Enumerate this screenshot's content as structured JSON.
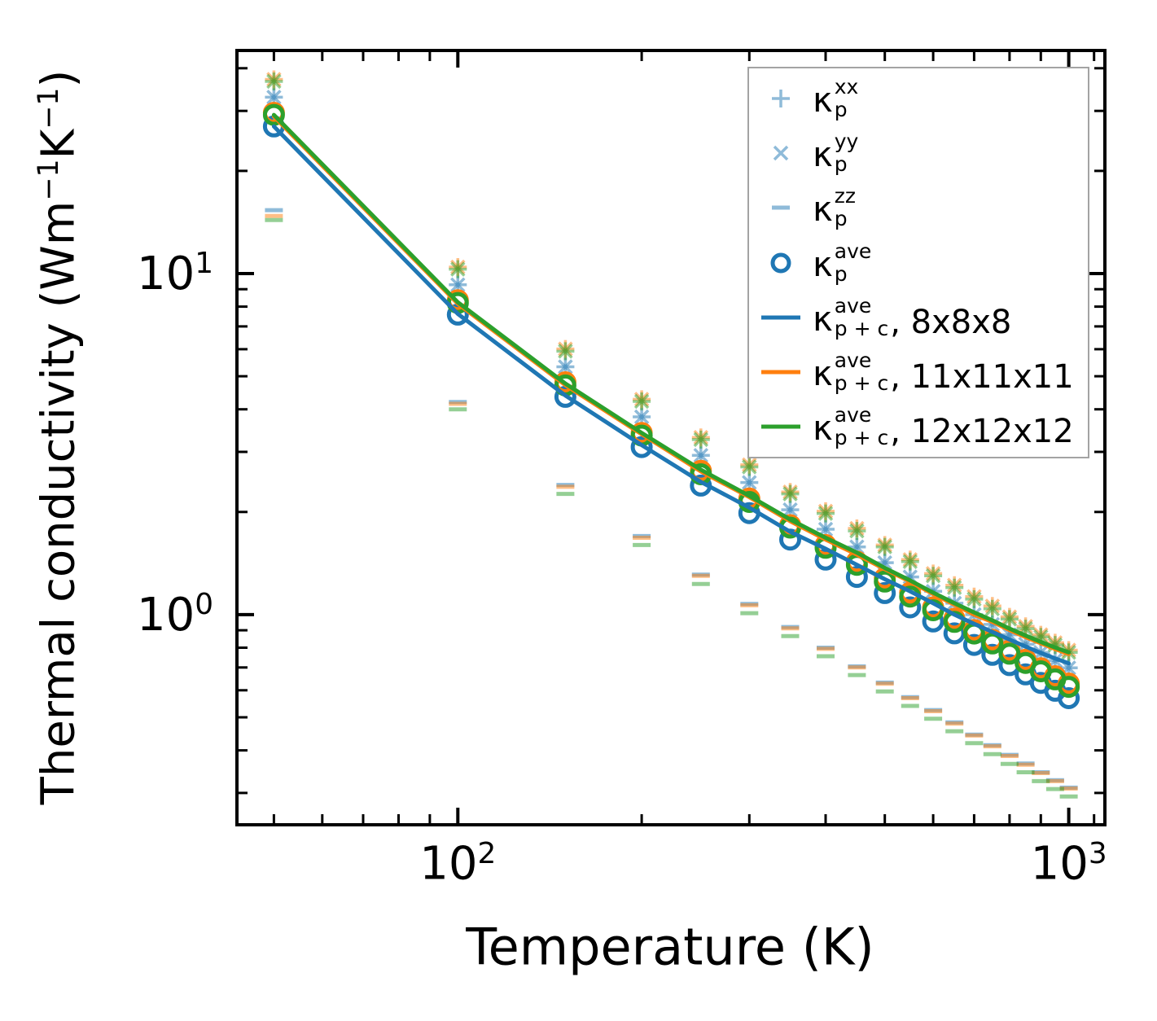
{
  "chart_data": {
    "type": "scatter+line",
    "title": "",
    "x_axis": {
      "label": "Temperature (K)",
      "scale": "log",
      "range": [
        43.5,
        1146
      ],
      "major_ticks": [
        100,
        1000
      ],
      "major_tick_labels": [
        {
          "t": "10",
          "sup": "2"
        },
        {
          "t": "10",
          "sup": "3"
        }
      ],
      "minor_ticks": [
        50,
        60,
        70,
        80,
        90,
        200,
        300,
        400,
        500,
        600,
        700,
        800,
        900,
        1100
      ]
    },
    "y_axis": {
      "label_parts": [
        {
          "t": "Thermal conductivity (Wm"
        },
        {
          "sup": "−1"
        },
        {
          "t": "K"
        },
        {
          "sup": "−1"
        },
        {
          "t": ")"
        }
      ],
      "scale": "log",
      "range": [
        0.242,
        45.1
      ],
      "major_ticks": [
        1,
        10
      ],
      "major_tick_labels": [
        {
          "t": "10",
          "sup": "0"
        },
        {
          "t": "10",
          "sup": "1"
        }
      ],
      "minor_ticks": [
        0.3,
        0.4,
        0.5,
        0.6,
        0.7,
        0.8,
        0.9,
        2,
        3,
        4,
        5,
        6,
        7,
        8,
        9,
        20,
        30,
        40
      ]
    },
    "temperatures": [
      50,
      100,
      150,
      200,
      250,
      300,
      350,
      400,
      450,
      500,
      550,
      600,
      650,
      700,
      750,
      800,
      850,
      900,
      950,
      1000
    ],
    "marker_light_opacity": 0.5,
    "meshes": [
      {
        "name": "8x8x8",
        "color": "#1f77b4",
        "xx": [
          32.9,
          9.27,
          5.33,
          3.8,
          2.93,
          2.44,
          2.03,
          1.78,
          1.58,
          1.42,
          1.29,
          1.17,
          1.08,
          1.0,
          0.936,
          0.873,
          0.819,
          0.774,
          0.734,
          0.698
        ],
        "yy": [
          32.9,
          9.27,
          5.33,
          3.8,
          2.93,
          2.44,
          2.03,
          1.78,
          1.58,
          1.42,
          1.29,
          1.17,
          1.08,
          1.0,
          0.936,
          0.873,
          0.819,
          0.774,
          0.734,
          0.698
        ],
        "zz": [
          15.35,
          4.2,
          2.4,
          1.7,
          1.31,
          1.075,
          0.92,
          0.8,
          0.705,
          0.632,
          0.573,
          0.525,
          0.483,
          0.445,
          0.414,
          0.388,
          0.366,
          0.345,
          0.327,
          0.311
        ],
        "ave": [
          27.0,
          7.58,
          4.35,
          3.1,
          2.39,
          1.985,
          1.66,
          1.45,
          1.29,
          1.157,
          1.05,
          0.955,
          0.881,
          0.815,
          0.762,
          0.711,
          0.668,
          0.631,
          0.598,
          0.569
        ],
        "line_p_plus_c": [
          27.0,
          7.62,
          4.39,
          3.14,
          2.45,
          2.06,
          1.75,
          1.56,
          1.4,
          1.27,
          1.17,
          1.08,
          1.0,
          0.94,
          0.89,
          0.845,
          0.806,
          0.772,
          0.744,
          0.72
        ]
      },
      {
        "name": "11x11x11",
        "color": "#ff7f0e",
        "xx": [
          37.1,
          10.45,
          6.01,
          4.28,
          3.31,
          2.75,
          2.29,
          2.01,
          1.79,
          1.6,
          1.45,
          1.32,
          1.22,
          1.13,
          1.06,
          0.985,
          0.924,
          0.873,
          0.827,
          0.787
        ],
        "yy": [
          37.1,
          10.45,
          6.01,
          4.28,
          3.31,
          2.75,
          2.29,
          2.01,
          1.79,
          1.6,
          1.45,
          1.32,
          1.22,
          1.13,
          1.06,
          0.985,
          0.924,
          0.873,
          0.827,
          0.787
        ],
        "zz": [
          14.75,
          4.15,
          2.37,
          1.68,
          1.3,
          1.065,
          0.912,
          0.794,
          0.7,
          0.627,
          0.569,
          0.521,
          0.479,
          0.442,
          0.411,
          0.385,
          0.363,
          0.343,
          0.325,
          0.309
        ],
        "ave": [
          29.6,
          8.35,
          4.8,
          3.41,
          2.64,
          2.19,
          1.83,
          1.6,
          1.43,
          1.28,
          1.16,
          1.05,
          0.973,
          0.901,
          0.844,
          0.785,
          0.737,
          0.696,
          0.66,
          0.628
        ],
        "line_p_plus_c": [
          28.9,
          8.16,
          4.71,
          3.38,
          2.63,
          2.21,
          1.88,
          1.66,
          1.5,
          1.36,
          1.25,
          1.15,
          1.07,
          1.0,
          0.952,
          0.901,
          0.859,
          0.824,
          0.793,
          0.767
        ]
      },
      {
        "name": "12x12x12",
        "color": "#2ca02c",
        "xx": [
          36.6,
          10.3,
          5.92,
          4.22,
          3.26,
          2.71,
          2.26,
          1.98,
          1.76,
          1.58,
          1.43,
          1.3,
          1.2,
          1.11,
          1.04,
          0.97,
          0.91,
          0.86,
          0.815,
          0.775
        ],
        "yy": [
          36.6,
          10.3,
          5.92,
          4.22,
          3.26,
          2.71,
          2.26,
          1.98,
          1.76,
          1.58,
          1.43,
          1.3,
          1.2,
          1.11,
          1.04,
          0.97,
          0.91,
          0.86,
          0.815,
          0.775
        ],
        "zz": [
          14.35,
          4.0,
          2.26,
          1.6,
          1.23,
          1.01,
          0.865,
          0.755,
          0.665,
          0.595,
          0.54,
          0.495,
          0.455,
          0.42,
          0.39,
          0.365,
          0.345,
          0.325,
          0.308,
          0.293
        ],
        "ave": [
          29.2,
          8.2,
          4.7,
          3.35,
          2.58,
          2.14,
          1.8,
          1.57,
          1.4,
          1.25,
          1.13,
          1.03,
          0.952,
          0.88,
          0.823,
          0.768,
          0.722,
          0.682,
          0.646,
          0.614
        ],
        "line_p_plus_c": [
          29.2,
          8.24,
          4.76,
          3.41,
          2.66,
          2.23,
          1.9,
          1.68,
          1.52,
          1.37,
          1.26,
          1.16,
          1.08,
          1.015,
          0.962,
          0.91,
          0.868,
          0.832,
          0.801,
          0.775
        ]
      }
    ],
    "legend": {
      "border_color": "#a3a3a3",
      "entries": [
        {
          "marker": "plus",
          "color": "#1f77b4",
          "light": true,
          "kappa": "κ",
          "sup": "xx",
          "sub": "p",
          "suffix": ""
        },
        {
          "marker": "cross",
          "color": "#1f77b4",
          "light": true,
          "kappa": "κ",
          "sup": "yy",
          "sub": "p",
          "suffix": ""
        },
        {
          "marker": "dash",
          "color": "#1f77b4",
          "light": true,
          "kappa": "κ",
          "sup": "zz",
          "sub": "p",
          "suffix": ""
        },
        {
          "marker": "circle",
          "color": "#1f77b4",
          "light": false,
          "kappa": "κ",
          "sup": "ave",
          "sub": "p",
          "suffix": ""
        },
        {
          "marker": "line",
          "color": "#1f77b4",
          "light": false,
          "kappa": "κ",
          "sup": "ave",
          "sub": "p + c",
          "suffix": ", 8x8x8"
        },
        {
          "marker": "line",
          "color": "#ff7f0e",
          "light": false,
          "kappa": "κ",
          "sup": "ave",
          "sub": "p + c",
          "suffix": ", 11x11x11"
        },
        {
          "marker": "line",
          "color": "#2ca02c",
          "light": false,
          "kappa": "κ",
          "sup": "ave",
          "sub": "p + c",
          "suffix": ", 12x12x12"
        }
      ]
    }
  }
}
